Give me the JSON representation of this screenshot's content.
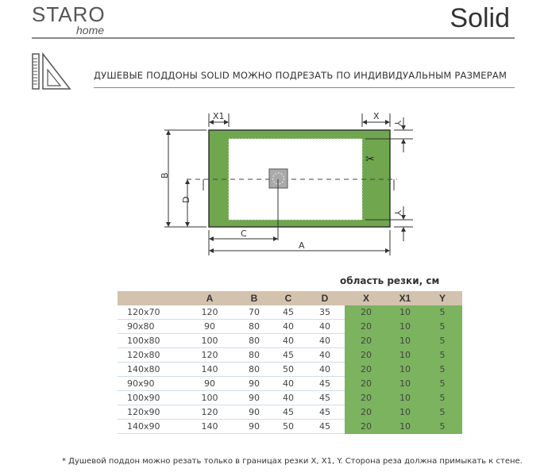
{
  "header": {
    "logo": "STARO home",
    "logo_main": "STARO",
    "logo_sub": "home",
    "title": "Solid"
  },
  "subtitle": "ДУШЕВЫЕ ПОДДОНЫ SOLID МОЖНО ПОДРЕЗАТЬ ПО ИНДИВИДУАЛЬНЫМ РАЗМЕРАМ",
  "diagram": {
    "labels": {
      "x1": "X1",
      "x": "X",
      "y_top": "Y",
      "y_bottom": "Y",
      "b": "B",
      "d": "D",
      "c": "C",
      "a": "A"
    },
    "tray_color": "#6fa64e"
  },
  "table": {
    "cut_area_label": "область резки, см",
    "headers": [
      "",
      "A",
      "B",
      "C",
      "D",
      "X",
      "X1",
      "Y"
    ],
    "rows": [
      [
        "120x70",
        "120",
        "70",
        "45",
        "35",
        "20",
        "10",
        "5"
      ],
      [
        "90x80",
        "90",
        "80",
        "40",
        "40",
        "20",
        "10",
        "5"
      ],
      [
        "100x80",
        "100",
        "80",
        "40",
        "40",
        "20",
        "10",
        "5"
      ],
      [
        "120x80",
        "120",
        "80",
        "45",
        "40",
        "20",
        "10",
        "5"
      ],
      [
        "140x80",
        "140",
        "80",
        "50",
        "40",
        "20",
        "10",
        "5"
      ],
      [
        "90x90",
        "90",
        "90",
        "40",
        "45",
        "20",
        "10",
        "5"
      ],
      [
        "100x90",
        "100",
        "90",
        "40",
        "45",
        "20",
        "10",
        "5"
      ],
      [
        "120x90",
        "120",
        "90",
        "45",
        "45",
        "20",
        "10",
        "5"
      ],
      [
        "140x90",
        "140",
        "90",
        "50",
        "45",
        "20",
        "10",
        "5"
      ]
    ]
  },
  "footnote": "*    Душевой поддон можно резать только в границах резки X, X1, Y. Сторона реза должна примыкать к стене."
}
